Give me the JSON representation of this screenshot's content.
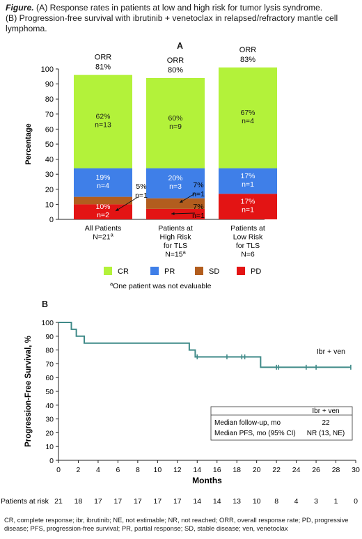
{
  "caption": {
    "label": "Figure.",
    "line1": "(A) Response rates in patients at low and high risk for tumor lysis syndrome.",
    "line2": "(B) Progression-free survival with ibrutinib + venetoclax in relapsed/refractory mantle cell lymphoma."
  },
  "panel_a_label": "A",
  "panel_b_label": "B",
  "colors": {
    "CR": "#b3f23a",
    "PR": "#3f7fe8",
    "SD": "#b25d1e",
    "PD": "#e31414",
    "km": "#3f8a88"
  },
  "chart_data": [
    {
      "type": "bar",
      "stacked": true,
      "ylabel": "Percentage",
      "ylim": [
        0,
        100
      ],
      "yticks": [
        "0",
        "10",
        "20",
        "30",
        "40",
        "50",
        "60",
        "70",
        "80",
        "90",
        "100"
      ],
      "categories": [
        {
          "lines": [
            "All Patients",
            "N=21"
          ],
          "sup": "a"
        },
        {
          "lines": [
            "Patients at",
            "High Risk",
            "for TLS",
            "N=15"
          ],
          "sup": "a"
        },
        {
          "lines": [
            "Patients at",
            "Low Risk",
            "for TLS",
            "N=6"
          ],
          "sup": ""
        }
      ],
      "series": [
        {
          "name": "PD",
          "values": [
            10,
            7,
            17
          ],
          "labels": [
            "10%\nn=2",
            "7%\nn=1",
            "17%\nn=1"
          ]
        },
        {
          "name": "SD",
          "values": [
            5,
            7,
            0
          ],
          "labels": [
            "5%\nn=1",
            "7%\nn=1",
            ""
          ]
        },
        {
          "name": "PR",
          "values": [
            19,
            20,
            17
          ],
          "labels": [
            "19%\nn=4",
            "20%\nn=3",
            "17%\nn=1"
          ]
        },
        {
          "name": "CR",
          "values": [
            62,
            60,
            67
          ],
          "labels": [
            "62%\nn=13",
            "60%\nn=9",
            "67%\nn=4"
          ]
        }
      ],
      "orr": [
        {
          "label": "ORR",
          "value": "81%"
        },
        {
          "label": "ORR",
          "value": "80%"
        },
        {
          "label": "ORR",
          "value": "83%"
        }
      ],
      "legend": [
        "CR",
        "PR",
        "SD",
        "PD"
      ],
      "legend_position": "bottom",
      "footnote": {
        "sup": "a",
        "text": "One patient was not evaluable"
      }
    },
    {
      "type": "line",
      "xlabel": "Months",
      "ylabel": "Progression-Free Survival, %",
      "xlim": [
        0,
        30
      ],
      "ylim": [
        0,
        100
      ],
      "xticks": [
        0,
        2,
        4,
        6,
        8,
        10,
        12,
        14,
        16,
        18,
        20,
        22,
        24,
        26,
        28,
        30
      ],
      "yticks": [
        0,
        10,
        20,
        30,
        40,
        50,
        60,
        70,
        80,
        90,
        100
      ],
      "series": [
        {
          "name": "Ibr + ven",
          "steps": [
            [
              0,
              100
            ],
            [
              1.3,
              95
            ],
            [
              1.8,
              90
            ],
            [
              2.6,
              85
            ],
            [
              13.2,
              80
            ],
            [
              13.8,
              75
            ],
            [
              20.4,
              67.5
            ],
            [
              29.5,
              67.5
            ]
          ],
          "censored": [
            [
              14,
              75
            ],
            [
              17,
              75
            ],
            [
              18.5,
              75
            ],
            [
              18.8,
              75
            ],
            [
              22,
              67.5
            ],
            [
              22.2,
              67.5
            ],
            [
              25,
              67.5
            ],
            [
              26,
              67.5
            ],
            [
              29.5,
              67.5
            ]
          ]
        }
      ],
      "table": {
        "header": "Ibr + ven",
        "rows": [
          {
            "label": "Median follow-up, mo",
            "value": "22"
          },
          {
            "label": "Median PFS, mo (95% CI)",
            "value": "NR (13, NE)"
          }
        ]
      },
      "at_risk": {
        "label": "Patients at risk",
        "values": [
          "21",
          "18",
          "17",
          "17",
          "17",
          "17",
          "17",
          "14",
          "14",
          "13",
          "10",
          "8",
          "4",
          "3",
          "1",
          "0"
        ]
      }
    }
  ],
  "abbreviations": "CR, complete response; ibr, ibrutinib; NE, not estimable; NR, not reached; ORR, overall response rate; PD, progressive disease; PFS, progression-free survival; PR, partial response; SD, stable disease; ven, venetoclax"
}
